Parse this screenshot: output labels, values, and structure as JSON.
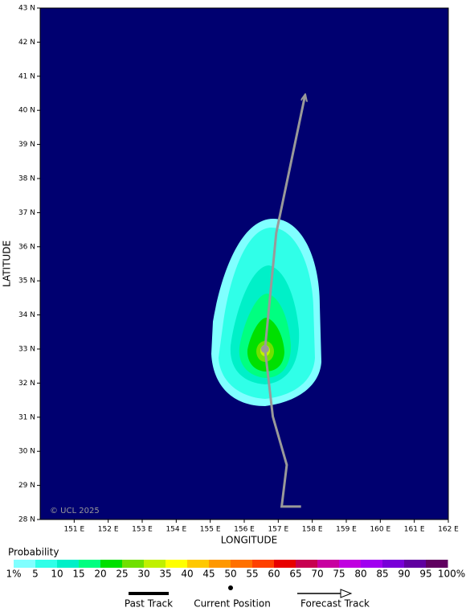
{
  "chart_data": {
    "type": "track",
    "x_label": "LONGITUDE",
    "y_label": "LATITUDE",
    "xlim": [
      150,
      162
    ],
    "ylim": [
      28,
      43
    ],
    "xticks": [
      {
        "value": 151,
        "label": "151 E"
      },
      {
        "value": 152,
        "label": "152 E"
      },
      {
        "value": 153,
        "label": "153 E"
      },
      {
        "value": 154,
        "label": "154 E"
      },
      {
        "value": 155,
        "label": "155 E"
      },
      {
        "value": 156,
        "label": "156 E"
      },
      {
        "value": 157,
        "label": "157 E"
      },
      {
        "value": 158,
        "label": "158 E"
      },
      {
        "value": 159,
        "label": "159 E"
      },
      {
        "value": 160,
        "label": "160 E"
      },
      {
        "value": 161,
        "label": "161 E"
      },
      {
        "value": 162,
        "label": "162 E"
      }
    ],
    "yticks": [
      {
        "value": 28,
        "label": "28 N"
      },
      {
        "value": 29,
        "label": "29 N"
      },
      {
        "value": 30,
        "label": "30 N"
      },
      {
        "value": 31,
        "label": "31 N"
      },
      {
        "value": 32,
        "label": "32 N"
      },
      {
        "value": 33,
        "label": "33 N"
      },
      {
        "value": 34,
        "label": "34 N"
      },
      {
        "value": 35,
        "label": "35 N"
      },
      {
        "value": 36,
        "label": "36 N"
      },
      {
        "value": 37,
        "label": "37 N"
      },
      {
        "value": 38,
        "label": "38 N"
      },
      {
        "value": 39,
        "label": "39 N"
      },
      {
        "value": 40,
        "label": "40 N"
      },
      {
        "value": 41,
        "label": "41 N"
      },
      {
        "value": 42,
        "label": "42 N"
      },
      {
        "value": 43,
        "label": "43 N"
      }
    ],
    "background": "#000070",
    "copyright": "© UCL 2025",
    "series": [
      {
        "name": "Past Track",
        "color": "#999999",
        "x": [
          157.67,
          157.1,
          157.25,
          156.84,
          156.61
        ],
        "y": [
          28.38,
          28.38,
          29.6,
          31.02,
          33.0
        ]
      },
      {
        "name": "Current Position",
        "color": "#999999",
        "x": [
          156.61
        ],
        "y": [
          33.0
        ]
      },
      {
        "name": "Forecast Track",
        "color": "#999999",
        "x": [
          156.61,
          156.94,
          157.79
        ],
        "y": [
          33.0,
          36.4,
          40.45
        ]
      }
    ],
    "legend": {
      "title": "Probability",
      "colors": [
        "#80ffff",
        "#30ffe8",
        "#00f0c8",
        "#00ff80",
        "#00e000",
        "#70e000",
        "#c0f000",
        "#ffff00",
        "#ffc800",
        "#ff9800",
        "#ff7000",
        "#ff4000",
        "#e80000",
        "#c80050",
        "#c800a0",
        "#c000e0",
        "#a000f0",
        "#7800d8",
        "#6000a0",
        "#600060"
      ],
      "labels": [
        "1%",
        "5",
        "10",
        "15",
        "20",
        "25",
        "30",
        "35",
        "40",
        "45",
        "50",
        "55",
        "60",
        "65",
        "70",
        "75",
        "80",
        "85",
        "90",
        "95",
        "100%"
      ]
    }
  }
}
